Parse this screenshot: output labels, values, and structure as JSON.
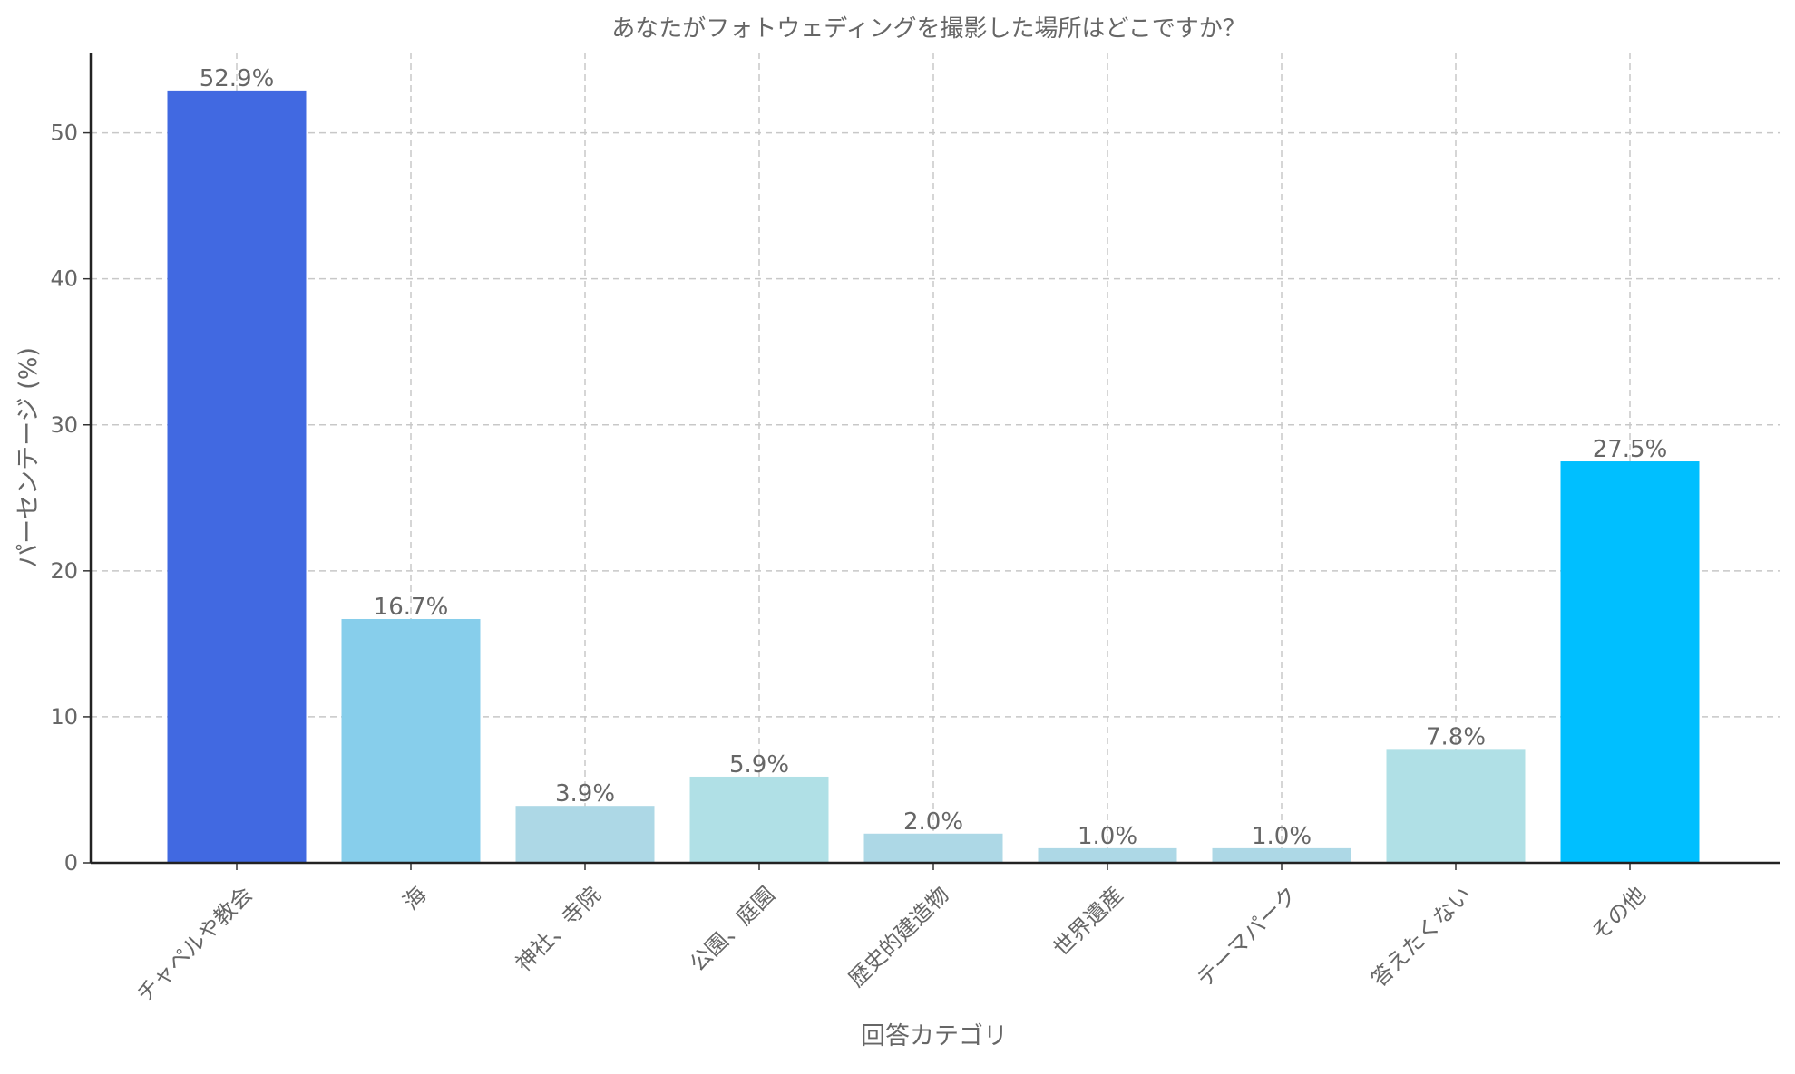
{
  "chart_data": {
    "type": "bar",
    "title": "あなたがフォトウェディングを撮影した場所はどこですか？",
    "xlabel": "回答カテゴリ",
    "ylabel": "パーセンテージ (%)",
    "categories": [
      "チャペルや教会",
      "海",
      "神社、寺院",
      "公園、庭園",
      "歴史的建造物",
      "世界遺産",
      "テーマパーク",
      "答えたくない",
      "その他"
    ],
    "values": [
      52.9,
      16.7,
      3.9,
      5.9,
      2.0,
      1.0,
      1.0,
      7.8,
      27.5
    ],
    "value_labels": [
      "52.9%",
      "16.7%",
      "3.9%",
      "5.9%",
      "2.0%",
      "1.0%",
      "1.0%",
      "7.8%",
      "27.5%"
    ],
    "colors": [
      "#4169E1",
      "#87CEEB",
      "#ADD8E6",
      "#B0E0E6",
      "#ADD8E6",
      "#ADD8E6",
      "#ADD8E6",
      "#B0E0E6",
      "#00BFFF"
    ],
    "yticks": [
      0,
      10,
      20,
      30,
      40,
      50
    ],
    "ytick_labels": [
      "0",
      "10",
      "20",
      "30",
      "40",
      "50"
    ],
    "ylim": [
      0,
      55.5
    ],
    "grid": true,
    "grid_style": "dashed",
    "legend": false
  }
}
